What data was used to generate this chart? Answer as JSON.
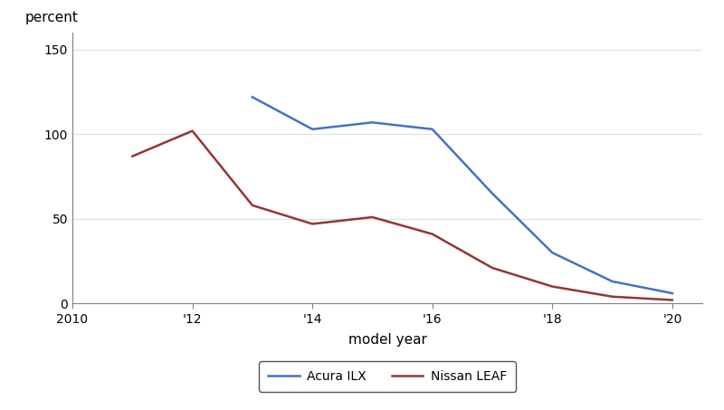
{
  "acura_ilx": {
    "years": [
      2013,
      2014,
      2015,
      2016,
      2017,
      2018,
      2019,
      2020
    ],
    "values": [
      122,
      103,
      107,
      103,
      65,
      30,
      13,
      6
    ]
  },
  "nissan_leaf": {
    "years": [
      2011,
      2012,
      2013,
      2014,
      2015,
      2016,
      2017,
      2018,
      2019,
      2020
    ],
    "values": [
      87,
      102,
      58,
      47,
      51,
      41,
      21,
      10,
      4,
      2
    ]
  },
  "acura_color": "#4472C4",
  "nissan_color": "#943634",
  "acura_label": "Acura ILX",
  "nissan_label": "Nissan LEAF",
  "xlabel": "model year",
  "ylabel": "percent",
  "xlim": [
    2010,
    2020.5
  ],
  "ylim": [
    0,
    160
  ],
  "yticks": [
    0,
    50,
    100,
    150
  ],
  "xticks": [
    2010,
    2012,
    2014,
    2016,
    2018,
    2020
  ],
  "xticklabels": [
    "2010",
    "'12",
    "'14",
    "'16",
    "'18",
    "'20"
  ],
  "grid_color": "#cce5ef",
  "background_color": "#ffffff",
  "line_width": 1.8,
  "legend_fontsize": 10,
  "axis_fontsize": 11,
  "tick_fontsize": 10
}
